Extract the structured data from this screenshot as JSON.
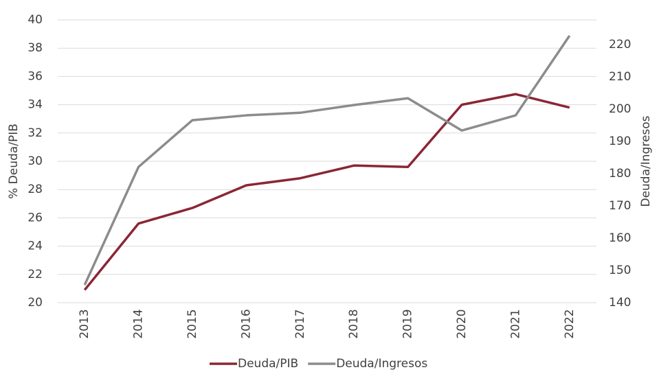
{
  "chart_data": {
    "type": "line",
    "categories": [
      "2013",
      "2014",
      "2015",
      "2016",
      "2017",
      "2018",
      "2019",
      "2020",
      "2021",
      "2022"
    ],
    "series": [
      {
        "name": "Deuda/PIB",
        "color": "#8b2635",
        "values": [
          20.9,
          25.6,
          26.7,
          28.3,
          28.8,
          29.7,
          29.6,
          34.0,
          34.75,
          33.8
        ]
      },
      {
        "name": "Deuda/Ingresos",
        "color": "#8c8c8c",
        "axis": "y2",
        "values": [
          145.5,
          182.1,
          196.6,
          198.1,
          198.9,
          201.3,
          203.4,
          193.4,
          198.1,
          222.8
        ]
      }
    ],
    "ylabel": "% Deuda/PIB",
    "y2label": "Deuda/Ingresos",
    "ylim": [
      20,
      40
    ],
    "yticks": [
      20,
      22,
      24,
      26,
      28,
      30,
      32,
      34,
      36,
      38,
      40
    ],
    "y2lim": [
      140,
      227.7
    ],
    "y2ticks": [
      140,
      150,
      160,
      170,
      180,
      190,
      200,
      210,
      220
    ],
    "grid": true,
    "legend": "bottom"
  }
}
